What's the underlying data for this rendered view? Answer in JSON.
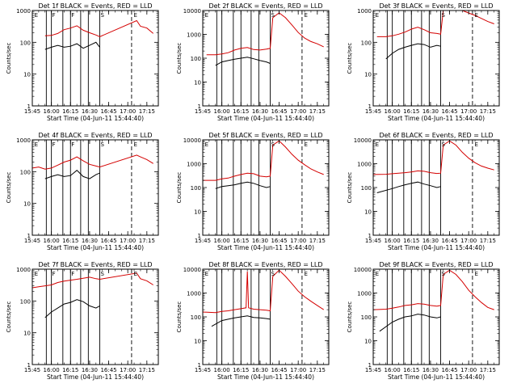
{
  "chart_data": [
    {
      "type": "line",
      "title": "Det 1f BLACK = Events, RED = LLD",
      "xlabel": "Start Time (04-Jun-11 15:44:40)",
      "ylabel": "Counts/sec",
      "yscale": "log",
      "ylim": [
        1,
        1000
      ],
      "xlim": [
        "15:45",
        "17:24"
      ],
      "xticks": [
        "15:45",
        "16:00",
        "16:15",
        "16:30",
        "16:45",
        "17:00",
        "17:15"
      ],
      "yticks": [
        "1",
        "10",
        "100",
        "1000"
      ],
      "markers": [
        "E",
        "F",
        "F",
        "S",
        "E"
      ],
      "data_start": "15:55",
      "series": [
        {
          "color": "#d40000",
          "x": [
            "15:55",
            "16:00",
            "16:05",
            "16:10",
            "16:15",
            "16:20",
            "16:25",
            "16:30",
            "16:35",
            "16:38",
            "17:07",
            "17:10",
            "17:15",
            "17:20"
          ],
          "y": [
            160,
            165,
            190,
            250,
            280,
            330,
            240,
            200,
            170,
            150,
            480,
            320,
            280,
            190
          ]
        },
        {
          "color": "#000000",
          "x": [
            "15:55",
            "16:00",
            "16:05",
            "16:10",
            "16:15",
            "16:20",
            "16:25",
            "16:30",
            "16:35",
            "16:38"
          ],
          "y": [
            60,
            70,
            80,
            70,
            75,
            90,
            65,
            80,
            100,
            70
          ]
        }
      ]
    },
    {
      "type": "line",
      "title": "Det 2f BLACK = Events, RED = LLD",
      "xlabel": "Start Time (04-Jun-11 15:44:40)",
      "ylabel": "Counts/sec",
      "yscale": "log",
      "ylim": [
        1,
        10000
      ],
      "xlim": [
        "15:45",
        "17:24"
      ],
      "xticks": [
        "15:45",
        "16:00",
        "16:15",
        "16:30",
        "16:45",
        "17:00",
        "17:15"
      ],
      "yticks": [
        "1",
        "10",
        "100",
        "1000",
        "10000"
      ],
      "markers": [
        "E",
        "S",
        "E"
      ],
      "data_start": "15:48",
      "series": [
        {
          "color": "#d40000",
          "x": [
            "15:48",
            "15:55",
            "16:00",
            "16:05",
            "16:10",
            "16:15",
            "16:20",
            "16:25",
            "16:30",
            "16:35",
            "16:38",
            "16:40",
            "16:45",
            "16:50",
            "16:55",
            "17:00",
            "17:05",
            "17:10",
            "17:15",
            "17:20"
          ],
          "y": [
            140,
            140,
            150,
            170,
            220,
            260,
            280,
            230,
            220,
            240,
            260,
            5000,
            8000,
            5000,
            2500,
            1200,
            700,
            500,
            400,
            300
          ]
        },
        {
          "color": "#000000",
          "x": [
            "15:55",
            "16:00",
            "16:05",
            "16:10",
            "16:15",
            "16:20",
            "16:25",
            "16:30",
            "16:35",
            "16:38"
          ],
          "y": [
            50,
            70,
            80,
            90,
            100,
            110,
            95,
            80,
            70,
            60
          ]
        }
      ]
    },
    {
      "type": "line",
      "title": "Det 3f BLACK = Events, RED = LLD",
      "xlabel": "Start Time (04-Jun-11 15:44:40)",
      "ylabel": "Counts/sec",
      "yscale": "log",
      "ylim": [
        1,
        1000
      ],
      "xlim": [
        "15:45",
        "17:24"
      ],
      "xticks": [
        "15:45",
        "16:00",
        "16:15",
        "16:30",
        "16:45",
        "17:00",
        "17:15"
      ],
      "yticks": [
        "1",
        "10",
        "100",
        "1000"
      ],
      "markers": [
        "E",
        "S",
        "E"
      ],
      "data_start": "15:48",
      "series": [
        {
          "color": "#d40000",
          "x": [
            "15:48",
            "15:55",
            "16:00",
            "16:05",
            "16:10",
            "16:15",
            "16:20",
            "16:25",
            "16:30",
            "16:35",
            "16:38",
            "16:40",
            "16:45",
            "16:55",
            "17:05",
            "17:15",
            "17:20"
          ],
          "y": [
            150,
            150,
            160,
            180,
            210,
            260,
            300,
            250,
            200,
            190,
            180,
            1000,
            1000,
            1000,
            700,
            450,
            380
          ]
        },
        {
          "color": "#000000",
          "x": [
            "15:55",
            "16:00",
            "16:05",
            "16:10",
            "16:15",
            "16:20",
            "16:25",
            "16:30",
            "16:35",
            "16:38"
          ],
          "y": [
            30,
            45,
            60,
            70,
            80,
            90,
            85,
            70,
            80,
            75
          ]
        }
      ]
    },
    {
      "type": "line",
      "title": "Det 4f BLACK = Events, RED = LLD",
      "xlabel": "Start Time (04-Jun-11 15:44:40)",
      "ylabel": "Counts/sec",
      "yscale": "log",
      "ylim": [
        1,
        1000
      ],
      "xlim": [
        "15:45",
        "17:24"
      ],
      "xticks": [
        "15:45",
        "16:00",
        "16:15",
        "16:30",
        "16:45",
        "17:00",
        "17:15"
      ],
      "yticks": [
        "1",
        "10",
        "100",
        "1000"
      ],
      "markers": [
        "E",
        "F",
        "F",
        "S",
        "E"
      ],
      "data_start": "15:45",
      "series": [
        {
          "color": "#d40000",
          "x": [
            "15:45",
            "15:50",
            "15:55",
            "16:00",
            "16:05",
            "16:10",
            "16:15",
            "16:20",
            "16:25",
            "16:30",
            "16:35",
            "16:38",
            "17:07",
            "17:10",
            "17:15",
            "17:20"
          ],
          "y": [
            130,
            140,
            120,
            130,
            160,
            200,
            230,
            290,
            220,
            170,
            150,
            140,
            330,
            290,
            240,
            180
          ]
        },
        {
          "color": "#000000",
          "x": [
            "15:55",
            "16:00",
            "16:05",
            "16:10",
            "16:15",
            "16:20",
            "16:25",
            "16:30",
            "16:35",
            "16:38"
          ],
          "y": [
            60,
            70,
            80,
            70,
            75,
            110,
            70,
            60,
            80,
            90
          ]
        }
      ]
    },
    {
      "type": "line",
      "title": "Det 5f BLACK = Events, RED = LLD",
      "xlabel": "Start Time (04-Jun-11 15:44:40)",
      "ylabel": "Counts/sec",
      "yscale": "log",
      "ylim": [
        1,
        10000
      ],
      "xlim": [
        "15:45",
        "17:24"
      ],
      "xticks": [
        "15:45",
        "16:00",
        "16:15",
        "16:30",
        "16:45",
        "17:00",
        "17:15"
      ],
      "yticks": [
        "1",
        "10",
        "100",
        "1000",
        "10000"
      ],
      "markers": [
        "E",
        "S",
        "E"
      ],
      "data_start": "15:45",
      "series": [
        {
          "color": "#d40000",
          "x": [
            "15:45",
            "15:55",
            "16:00",
            "16:05",
            "16:10",
            "16:15",
            "16:20",
            "16:25",
            "16:30",
            "16:35",
            "16:38",
            "16:40",
            "16:45",
            "16:50",
            "16:55",
            "17:00",
            "17:05",
            "17:10",
            "17:15",
            "17:20"
          ],
          "y": [
            200,
            200,
            230,
            250,
            300,
            350,
            400,
            380,
            300,
            280,
            300,
            6000,
            9000,
            5000,
            2500,
            1400,
            900,
            600,
            450,
            350
          ]
        },
        {
          "color": "#000000",
          "x": [
            "15:55",
            "16:00",
            "16:05",
            "16:10",
            "16:15",
            "16:20",
            "16:25",
            "16:30",
            "16:35",
            "16:38"
          ],
          "y": [
            90,
            110,
            120,
            130,
            150,
            170,
            150,
            120,
            100,
            110
          ]
        }
      ]
    },
    {
      "type": "line",
      "title": "Det 6f BLACK = Events, RED = LLD",
      "xlabel": "Start Time (04-Jun-11 15:44:40)",
      "ylabel": "Counts/sec",
      "yscale": "log",
      "ylim": [
        1,
        10000
      ],
      "xlim": [
        "15:45",
        "17:24"
      ],
      "xticks": [
        "15:45",
        "16:00",
        "16:15",
        "16:30",
        "16:45",
        "17:00",
        "17:15"
      ],
      "yticks": [
        "1",
        "10",
        "100",
        "1000",
        "10000"
      ],
      "markers": [
        "E",
        "S",
        "E"
      ],
      "data_start": "15:45",
      "series": [
        {
          "color": "#d40000",
          "x": [
            "15:45",
            "15:55",
            "16:00",
            "16:05",
            "16:10",
            "16:15",
            "16:20",
            "16:25",
            "16:30",
            "16:35",
            "16:38",
            "16:40",
            "16:45",
            "16:50",
            "16:55",
            "17:00",
            "17:05",
            "17:10",
            "17:15",
            "17:20"
          ],
          "y": [
            350,
            360,
            380,
            400,
            420,
            450,
            500,
            480,
            420,
            390,
            400,
            6000,
            9000,
            6000,
            3000,
            1700,
            1100,
            800,
            650,
            550
          ]
        },
        {
          "color": "#000000",
          "x": [
            "15:48",
            "16:00",
            "16:05",
            "16:10",
            "16:15",
            "16:20",
            "16:25",
            "16:30",
            "16:35",
            "16:38"
          ],
          "y": [
            60,
            90,
            110,
            130,
            150,
            170,
            140,
            120,
            100,
            110
          ]
        }
      ]
    },
    {
      "type": "line",
      "title": "Det 7f BLACK = Events, RED = LLD",
      "xlabel": "Start Time (04-Jun-11 15:44:40)",
      "ylabel": "Counts/sec",
      "yscale": "log",
      "ylim": [
        1,
        1000
      ],
      "xlim": [
        "15:45",
        "17:24"
      ],
      "xticks": [
        "15:45",
        "16:00",
        "16:15",
        "16:30",
        "16:45",
        "17:00",
        "17:15"
      ],
      "yticks": [
        "1",
        "10",
        "100",
        "1000"
      ],
      "markers": [
        "E",
        "F",
        "F",
        "S",
        "E"
      ],
      "data_start": "15:45",
      "series": [
        {
          "color": "#d40000",
          "x": [
            "15:45",
            "15:50",
            "15:55",
            "16:00",
            "16:05",
            "16:10",
            "16:15",
            "16:20",
            "16:25",
            "16:30",
            "16:35",
            "16:38",
            "17:07",
            "17:10",
            "17:15",
            "17:20"
          ],
          "y": [
            260,
            280,
            300,
            320,
            380,
            420,
            450,
            480,
            520,
            560,
            500,
            480,
            750,
            500,
            430,
            320
          ]
        },
        {
          "color": "#000000",
          "x": [
            "15:55",
            "16:00",
            "16:05",
            "16:10",
            "16:15",
            "16:20",
            "16:25",
            "16:30",
            "16:35",
            "16:38"
          ],
          "y": [
            30,
            45,
            60,
            80,
            90,
            110,
            95,
            70,
            60,
            70
          ]
        }
      ]
    },
    {
      "type": "line",
      "title": "Det 8f BLACK = Events, RED = LLD",
      "xlabel": "Start Time (04-Jun-11 15:44:40)",
      "ylabel": "Counts/sec",
      "yscale": "log",
      "ylim": [
        1,
        10000
      ],
      "xlim": [
        "15:45",
        "17:24"
      ],
      "xticks": [
        "15:45",
        "16:00",
        "16:15",
        "16:30",
        "16:45",
        "17:00",
        "17:15"
      ],
      "yticks": [
        "1",
        "10",
        "100",
        "1000",
        "10000"
      ],
      "markers": [
        "E",
        "S",
        "E"
      ],
      "data_start": "15:45",
      "series": [
        {
          "color": "#d40000",
          "x": [
            "15:45",
            "15:55",
            "16:00",
            "16:05",
            "16:10",
            "16:15",
            "16:19",
            "16:20",
            "16:21",
            "16:25",
            "16:30",
            "16:35",
            "16:38",
            "16:40",
            "16:45",
            "16:50",
            "16:55",
            "17:00",
            "17:05",
            "17:10",
            "17:15",
            "17:20"
          ],
          "y": [
            160,
            150,
            170,
            180,
            200,
            220,
            240,
            8000,
            240,
            210,
            200,
            190,
            180,
            5000,
            9000,
            5000,
            2500,
            1200,
            700,
            450,
            300,
            200
          ]
        },
        {
          "color": "#000000",
          "x": [
            "15:52",
            "16:00",
            "16:05",
            "16:10",
            "16:15",
            "16:20",
            "16:25",
            "16:30",
            "16:35",
            "16:38"
          ],
          "y": [
            40,
            70,
            80,
            90,
            100,
            110,
            95,
            90,
            85,
            80
          ]
        }
      ]
    },
    {
      "type": "line",
      "title": "Det 9f BLACK = Events, RED = LLD",
      "xlabel": "Start Time (04-Jun-11 15:44:40)",
      "ylabel": "Counts/sec",
      "yscale": "log",
      "ylim": [
        1,
        10000
      ],
      "xlim": [
        "15:45",
        "17:24"
      ],
      "xticks": [
        "15:45",
        "16:00",
        "16:15",
        "16:30",
        "16:45",
        "17:00",
        "17:15"
      ],
      "yticks": [
        "1",
        "10",
        "100",
        "1000",
        "10000"
      ],
      "markers": [
        "E",
        "S",
        "E"
      ],
      "data_start": "15:45",
      "series": [
        {
          "color": "#d40000",
          "x": [
            "15:45",
            "15:55",
            "16:00",
            "16:05",
            "16:10",
            "16:15",
            "16:20",
            "16:25",
            "16:30",
            "16:35",
            "16:38",
            "16:40",
            "16:45",
            "16:50",
            "16:55",
            "17:00",
            "17:05",
            "17:10",
            "17:15",
            "17:20"
          ],
          "y": [
            200,
            210,
            230,
            260,
            300,
            320,
            360,
            340,
            300,
            280,
            300,
            6000,
            9000,
            6000,
            3000,
            1300,
            700,
            400,
            250,
            200
          ]
        },
        {
          "color": "#000000",
          "x": [
            "15:50",
            "16:00",
            "16:05",
            "16:10",
            "16:15",
            "16:20",
            "16:25",
            "16:30",
            "16:35",
            "16:38"
          ],
          "y": [
            25,
            60,
            80,
            100,
            110,
            130,
            120,
            100,
            90,
            100
          ]
        }
      ]
    }
  ]
}
